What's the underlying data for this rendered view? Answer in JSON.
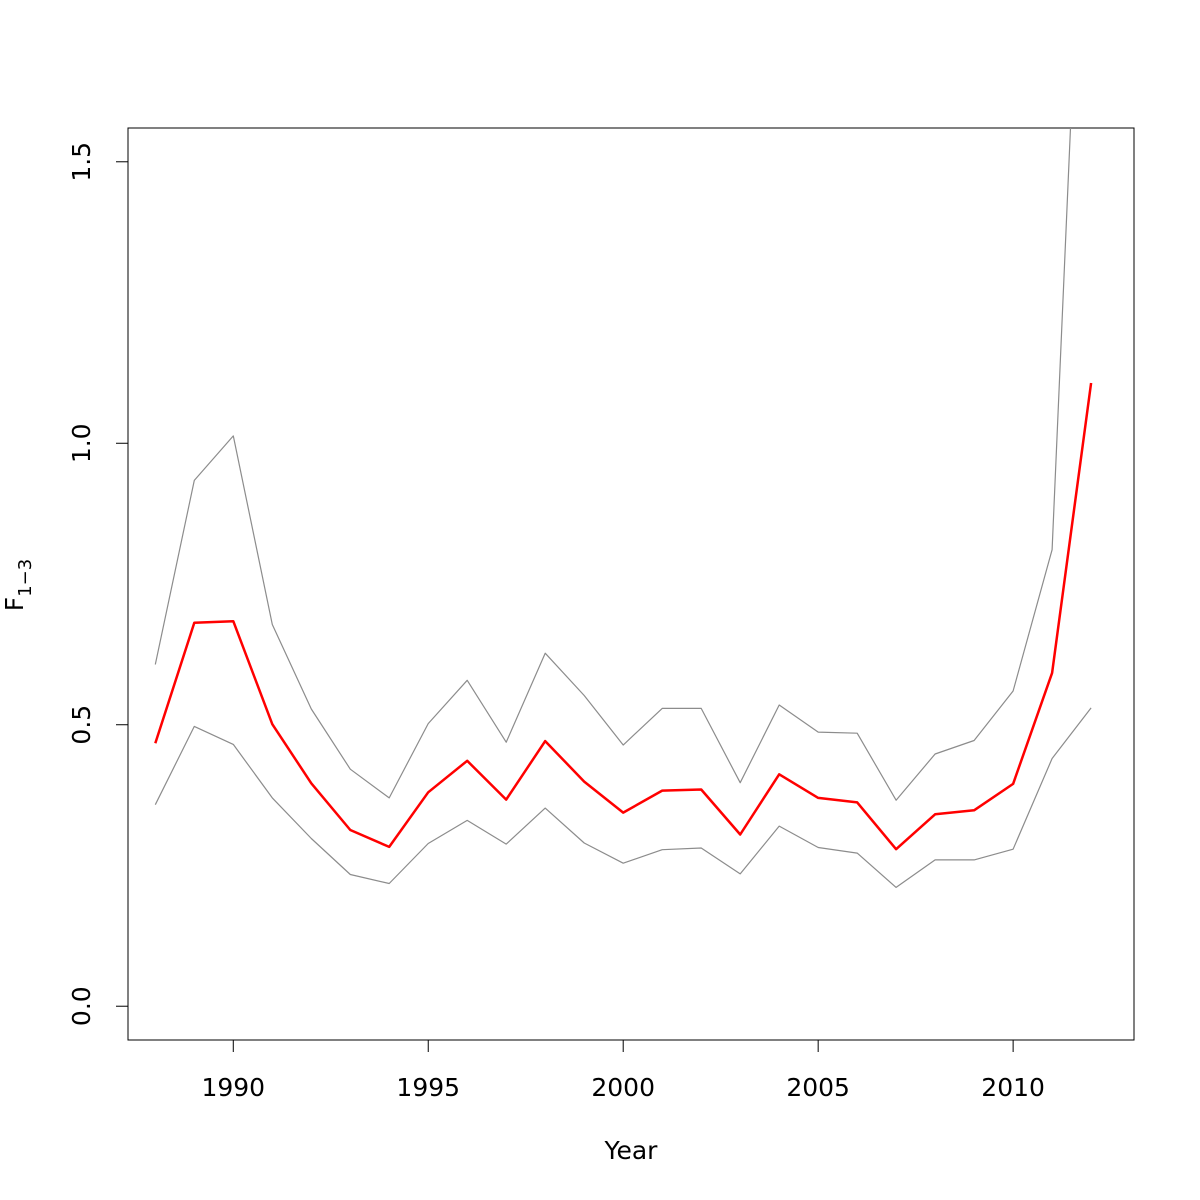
{
  "chart_data": {
    "type": "line",
    "title": "",
    "xlabel": "Year",
    "ylabel": {
      "main": "F",
      "sub": "1−3"
    },
    "xlim": [
      1987.3,
      2013.1
    ],
    "ylim": [
      -0.06,
      1.56
    ],
    "x_ticks": [
      1990,
      1995,
      2000,
      2005,
      2010
    ],
    "y_ticks": [
      0.0,
      0.5,
      1.0,
      1.5
    ],
    "y_tick_labels": [
      "0.0",
      "0.5",
      "1.0",
      "1.5"
    ],
    "grid": false,
    "legend": "none",
    "series": [
      {
        "role": "estimate",
        "color": "#ff0000",
        "x": [
          1988,
          1989,
          1990,
          1991,
          1992,
          1993,
          1994,
          1995,
          1996,
          1997,
          1998,
          1999,
          2000,
          2001,
          2002,
          2003,
          2004,
          2005,
          2006,
          2007,
          2008,
          2009,
          2010,
          2011,
          2012
        ],
        "values": [
          0.467,
          0.681,
          0.684,
          0.501,
          0.396,
          0.313,
          0.283,
          0.38,
          0.436,
          0.367,
          0.471,
          0.399,
          0.344,
          0.383,
          0.385,
          0.305,
          0.412,
          0.37,
          0.362,
          0.279,
          0.341,
          0.348,
          0.395,
          0.592,
          1.107
        ]
      },
      {
        "role": "upper-bound",
        "color": "#8c8c8c",
        "x": [
          1988,
          1989,
          1990,
          1991,
          1992,
          1993,
          1994,
          1995,
          1996,
          1997,
          1998,
          1999,
          2000,
          2001,
          2002,
          2003,
          2004,
          2005,
          2006,
          2007,
          2008,
          2009,
          2010,
          2011,
          2012
        ],
        "values": [
          0.607,
          0.934,
          1.013,
          0.678,
          0.528,
          0.421,
          0.37,
          0.502,
          0.579,
          0.469,
          0.627,
          0.552,
          0.464,
          0.529,
          0.529,
          0.397,
          0.535,
          0.487,
          0.485,
          0.366,
          0.448,
          0.472,
          0.56,
          0.811,
          2.4
        ]
      },
      {
        "role": "lower-bound",
        "color": "#8c8c8c",
        "x": [
          1988,
          1989,
          1990,
          1991,
          1992,
          1993,
          1994,
          1995,
          1996,
          1997,
          1998,
          1999,
          2000,
          2001,
          2002,
          2003,
          2004,
          2005,
          2006,
          2007,
          2008,
          2009,
          2010,
          2011,
          2012
        ],
        "values": [
          0.358,
          0.497,
          0.465,
          0.37,
          0.298,
          0.234,
          0.218,
          0.289,
          0.33,
          0.288,
          0.352,
          0.29,
          0.254,
          0.278,
          0.281,
          0.235,
          0.32,
          0.282,
          0.272,
          0.211,
          0.26,
          0.26,
          0.279,
          0.44,
          0.53
        ]
      }
    ]
  }
}
